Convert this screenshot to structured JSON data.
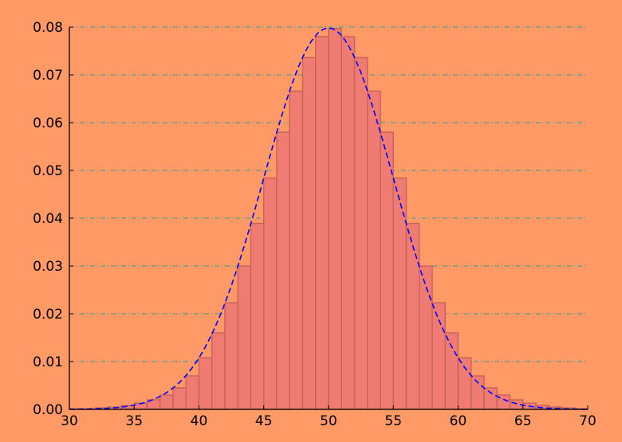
{
  "chart_data": {
    "type": "bar",
    "title": "",
    "xlabel": "",
    "ylabel": "",
    "xlim": [
      30,
      70
    ],
    "ylim": [
      0,
      0.08
    ],
    "x_ticks": [
      "30",
      "35",
      "40",
      "45",
      "50",
      "55",
      "60",
      "65",
      "70"
    ],
    "y_ticks": [
      "0.00",
      "0.01",
      "0.02",
      "0.03",
      "0.04",
      "0.05",
      "0.06",
      "0.07",
      "0.08"
    ],
    "grid": "horizontal dash-dot",
    "colors": {
      "background": "#ff9966",
      "bar_fill": "#f07b73",
      "bar_edge": "#c8645a",
      "curve": "#0000ff",
      "grid": "#2aa38a",
      "axes": "#000000"
    },
    "bars": {
      "bin_width": 1,
      "bin_starts": [
        30,
        31,
        32,
        33,
        34,
        35,
        36,
        37,
        38,
        39,
        40,
        41,
        42,
        43,
        44,
        45,
        46,
        47,
        48,
        49,
        50,
        51,
        52,
        53,
        54,
        55,
        56,
        57,
        58,
        59,
        60,
        61,
        62,
        63,
        64,
        65,
        66,
        67,
        68,
        69
      ],
      "heights": [
        0.0001,
        0.0001,
        0.0003,
        0.0005,
        0.0008,
        0.0013,
        0.002,
        0.003,
        0.0045,
        0.007,
        0.0108,
        0.016,
        0.0223,
        0.03,
        0.0389,
        0.0484,
        0.058,
        0.0666,
        0.0736,
        0.078,
        0.0797,
        0.078,
        0.0736,
        0.0666,
        0.058,
        0.0484,
        0.0389,
        0.03,
        0.0223,
        0.016,
        0.0108,
        0.007,
        0.0045,
        0.003,
        0.002,
        0.0013,
        0.0008,
        0.0005,
        0.0003,
        0.0001
      ]
    },
    "curve": {
      "style": "dashed",
      "mean": 50,
      "std": 5,
      "x_range": [
        30,
        70
      ]
    }
  }
}
